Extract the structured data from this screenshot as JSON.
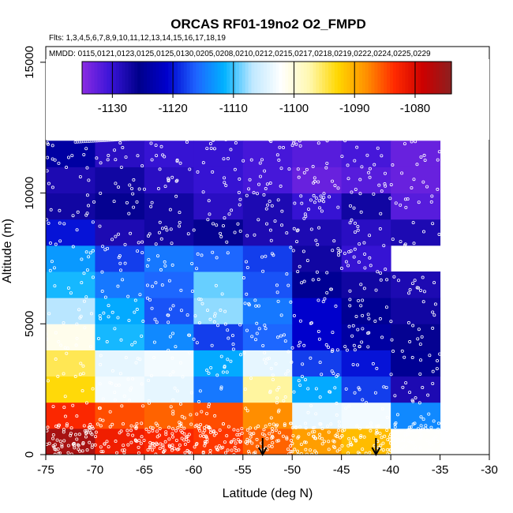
{
  "chart_data": {
    "type": "heatmap",
    "title": "ORCAS RF01-19no2 O2_FMPD",
    "flights_label": "Flts: 1,3,4,5,6,7,8,9,10,11,12,13,14,15,16,17,18,19",
    "dates_label": "MMDD: 0115,0121,0123,0125,0125,0130,0205,0208,0210,0212,0215,0217,0218,0219,0222,0224,0225,0229",
    "xlabel": "Latitude (deg N)",
    "ylabel": "Altitude (m)",
    "xlim": [
      -75,
      -30
    ],
    "ylim": [
      0,
      15600
    ],
    "x_ticks": [
      -75,
      -70,
      -65,
      -60,
      -55,
      -50,
      -45,
      -40,
      -35,
      -30
    ],
    "x_tick_labels": [
      "-75",
      "-70",
      "-65",
      "-60",
      "-55",
      "-50",
      "-45",
      "-40",
      "-35",
      "-30"
    ],
    "y_ticks": [
      0,
      5000,
      10000,
      15000
    ],
    "y_tick_labels": [
      "0",
      "5000",
      "10000",
      "15000"
    ],
    "colorbar": {
      "range": [
        -1135,
        -1074
      ],
      "ticks": [
        -1130,
        -1120,
        -1110,
        -1100,
        -1090,
        -1080
      ],
      "tick_labels": [
        "-1130",
        "-1120",
        "-1110",
        "-1100",
        "-1090",
        "-1080"
      ],
      "colors": [
        "#8a2be2",
        "#3a14d8",
        "#00008b",
        "#0000cd",
        "#1e63ff",
        "#00b2ff",
        "#bfe8ff",
        "#ffffff",
        "#fff8b0",
        "#ffd700",
        "#ff9000",
        "#ff2a00",
        "#cc0000",
        "#8b2020"
      ]
    },
    "x_edges": [
      -75,
      -70,
      -65,
      -60,
      -55,
      -50,
      -45,
      -40,
      -35
    ],
    "y_edges": [
      0,
      1000,
      2000,
      3000,
      4000,
      5000,
      6000,
      7000,
      8000,
      9000,
      10000,
      11000,
      12000
    ],
    "values": [
      [
        -1076,
        -1082,
        -1083,
        -1084,
        -1086,
        -1089,
        -1091,
        -1102
      ],
      [
        -1083,
        -1085,
        -1086,
        -1085,
        -1088,
        -1104,
        -1103,
        -1114
      ],
      [
        -1093,
        -1103,
        -1104,
        -1115,
        -1097,
        -1112,
        -1118,
        -1128
      ],
      [
        -1095,
        -1104,
        -1103,
        -1112,
        -1104,
        -1118,
        -1120,
        -1125
      ],
      [
        -1101,
        -1111,
        -1114,
        -1118,
        -1116,
        -1121,
        -1124,
        -1126
      ],
      [
        -1107,
        -1112,
        -1117,
        -1108,
        -1115,
        -1121,
        -1125,
        -1127
      ],
      [
        -1111,
        -1115,
        -1116,
        -1109,
        -1117,
        -1125,
        -1127,
        -1128
      ],
      [
        -1113,
        -1118,
        -1115,
        -1116,
        -1118,
        -1127,
        -1130,
        null
      ],
      [
        -1120,
        -1128,
        -1127,
        -1126,
        -1128,
        -1128,
        -1129,
        -1128
      ],
      [
        -1127,
        -1126,
        -1127,
        -1129,
        -1128,
        -1130,
        -1127,
        -1132
      ],
      [
        -1128,
        -1127,
        -1129,
        -1130,
        -1131,
        -1133,
        -1132,
        -1133
      ],
      [
        -1124,
        -1129,
        -1130,
        -1130,
        -1131,
        -1132,
        -1131,
        -1133
      ]
    ],
    "arrows_latitude": [
      -53,
      -41.5
    ]
  }
}
